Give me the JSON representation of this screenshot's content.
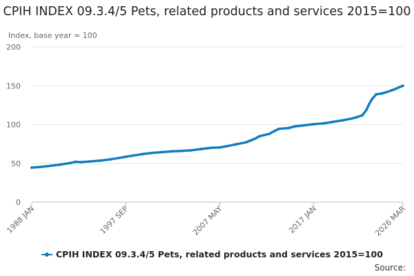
{
  "chart_data": {
    "type": "line",
    "title": "CPIH INDEX 09.3.4/5 Pets, related products and services 2015=100",
    "ylabel": "Index, base year = 100",
    "xlabel": "",
    "ylim": [
      0,
      200
    ],
    "yticks": [
      0,
      50,
      100,
      150,
      200
    ],
    "xlim": [
      "1988-01",
      "2026-03"
    ],
    "xticks": [
      "1988 JAN",
      "1997 SEP",
      "2007 MAY",
      "2017 JAN",
      "2026 MAR"
    ],
    "grid": true,
    "legend_position": "bottom",
    "source": "Source:",
    "series": [
      {
        "name": "CPIH INDEX 09.3.4/5 Pets, related products and services 2015=100",
        "color": "#0f7cbf",
        "points": [
          [
            "1988-01",
            44.5
          ],
          [
            "1989-01",
            45.5
          ],
          [
            "1990-01",
            47
          ],
          [
            "1991-01",
            48.5
          ],
          [
            "1992-01",
            50.5
          ],
          [
            "1992-07",
            52
          ],
          [
            "1993-01",
            51.5
          ],
          [
            "1994-01",
            52.5
          ],
          [
            "1995-01",
            53.5
          ],
          [
            "1996-01",
            55
          ],
          [
            "1997-01",
            57
          ],
          [
            "1997-09",
            58.5
          ],
          [
            "1998-06",
            60
          ],
          [
            "1999-06",
            62
          ],
          [
            "2000-06",
            63.5
          ],
          [
            "2001-06",
            64.5
          ],
          [
            "2002-06",
            65.5
          ],
          [
            "2003-06",
            66
          ],
          [
            "2004-06",
            66.8
          ],
          [
            "2005-06",
            68.5
          ],
          [
            "2006-06",
            70
          ],
          [
            "2007-05",
            70.5
          ],
          [
            "2008-01",
            72
          ],
          [
            "2009-01",
            74.5
          ],
          [
            "2010-01",
            77
          ],
          [
            "2010-06",
            79
          ],
          [
            "2011-01",
            82
          ],
          [
            "2011-06",
            85
          ],
          [
            "2012-06",
            88
          ],
          [
            "2013-01",
            92
          ],
          [
            "2013-06",
            94.5
          ],
          [
            "2014-06",
            95.5
          ],
          [
            "2015-01",
            97.5
          ],
          [
            "2016-01",
            99
          ],
          [
            "2017-01",
            100.5
          ],
          [
            "2018-01",
            101.5
          ],
          [
            "2019-01",
            103.5
          ],
          [
            "2020-01",
            105.5
          ],
          [
            "2021-01",
            108
          ],
          [
            "2021-06",
            109.5
          ],
          [
            "2022-01",
            112
          ],
          [
            "2022-06",
            119
          ],
          [
            "2022-09",
            126
          ],
          [
            "2023-01",
            133
          ],
          [
            "2023-06",
            139
          ],
          [
            "2024-01",
            140
          ],
          [
            "2024-06",
            141.5
          ],
          [
            "2025-01",
            144
          ],
          [
            "2025-06",
            146
          ],
          [
            "2026-03",
            150
          ]
        ]
      }
    ]
  }
}
